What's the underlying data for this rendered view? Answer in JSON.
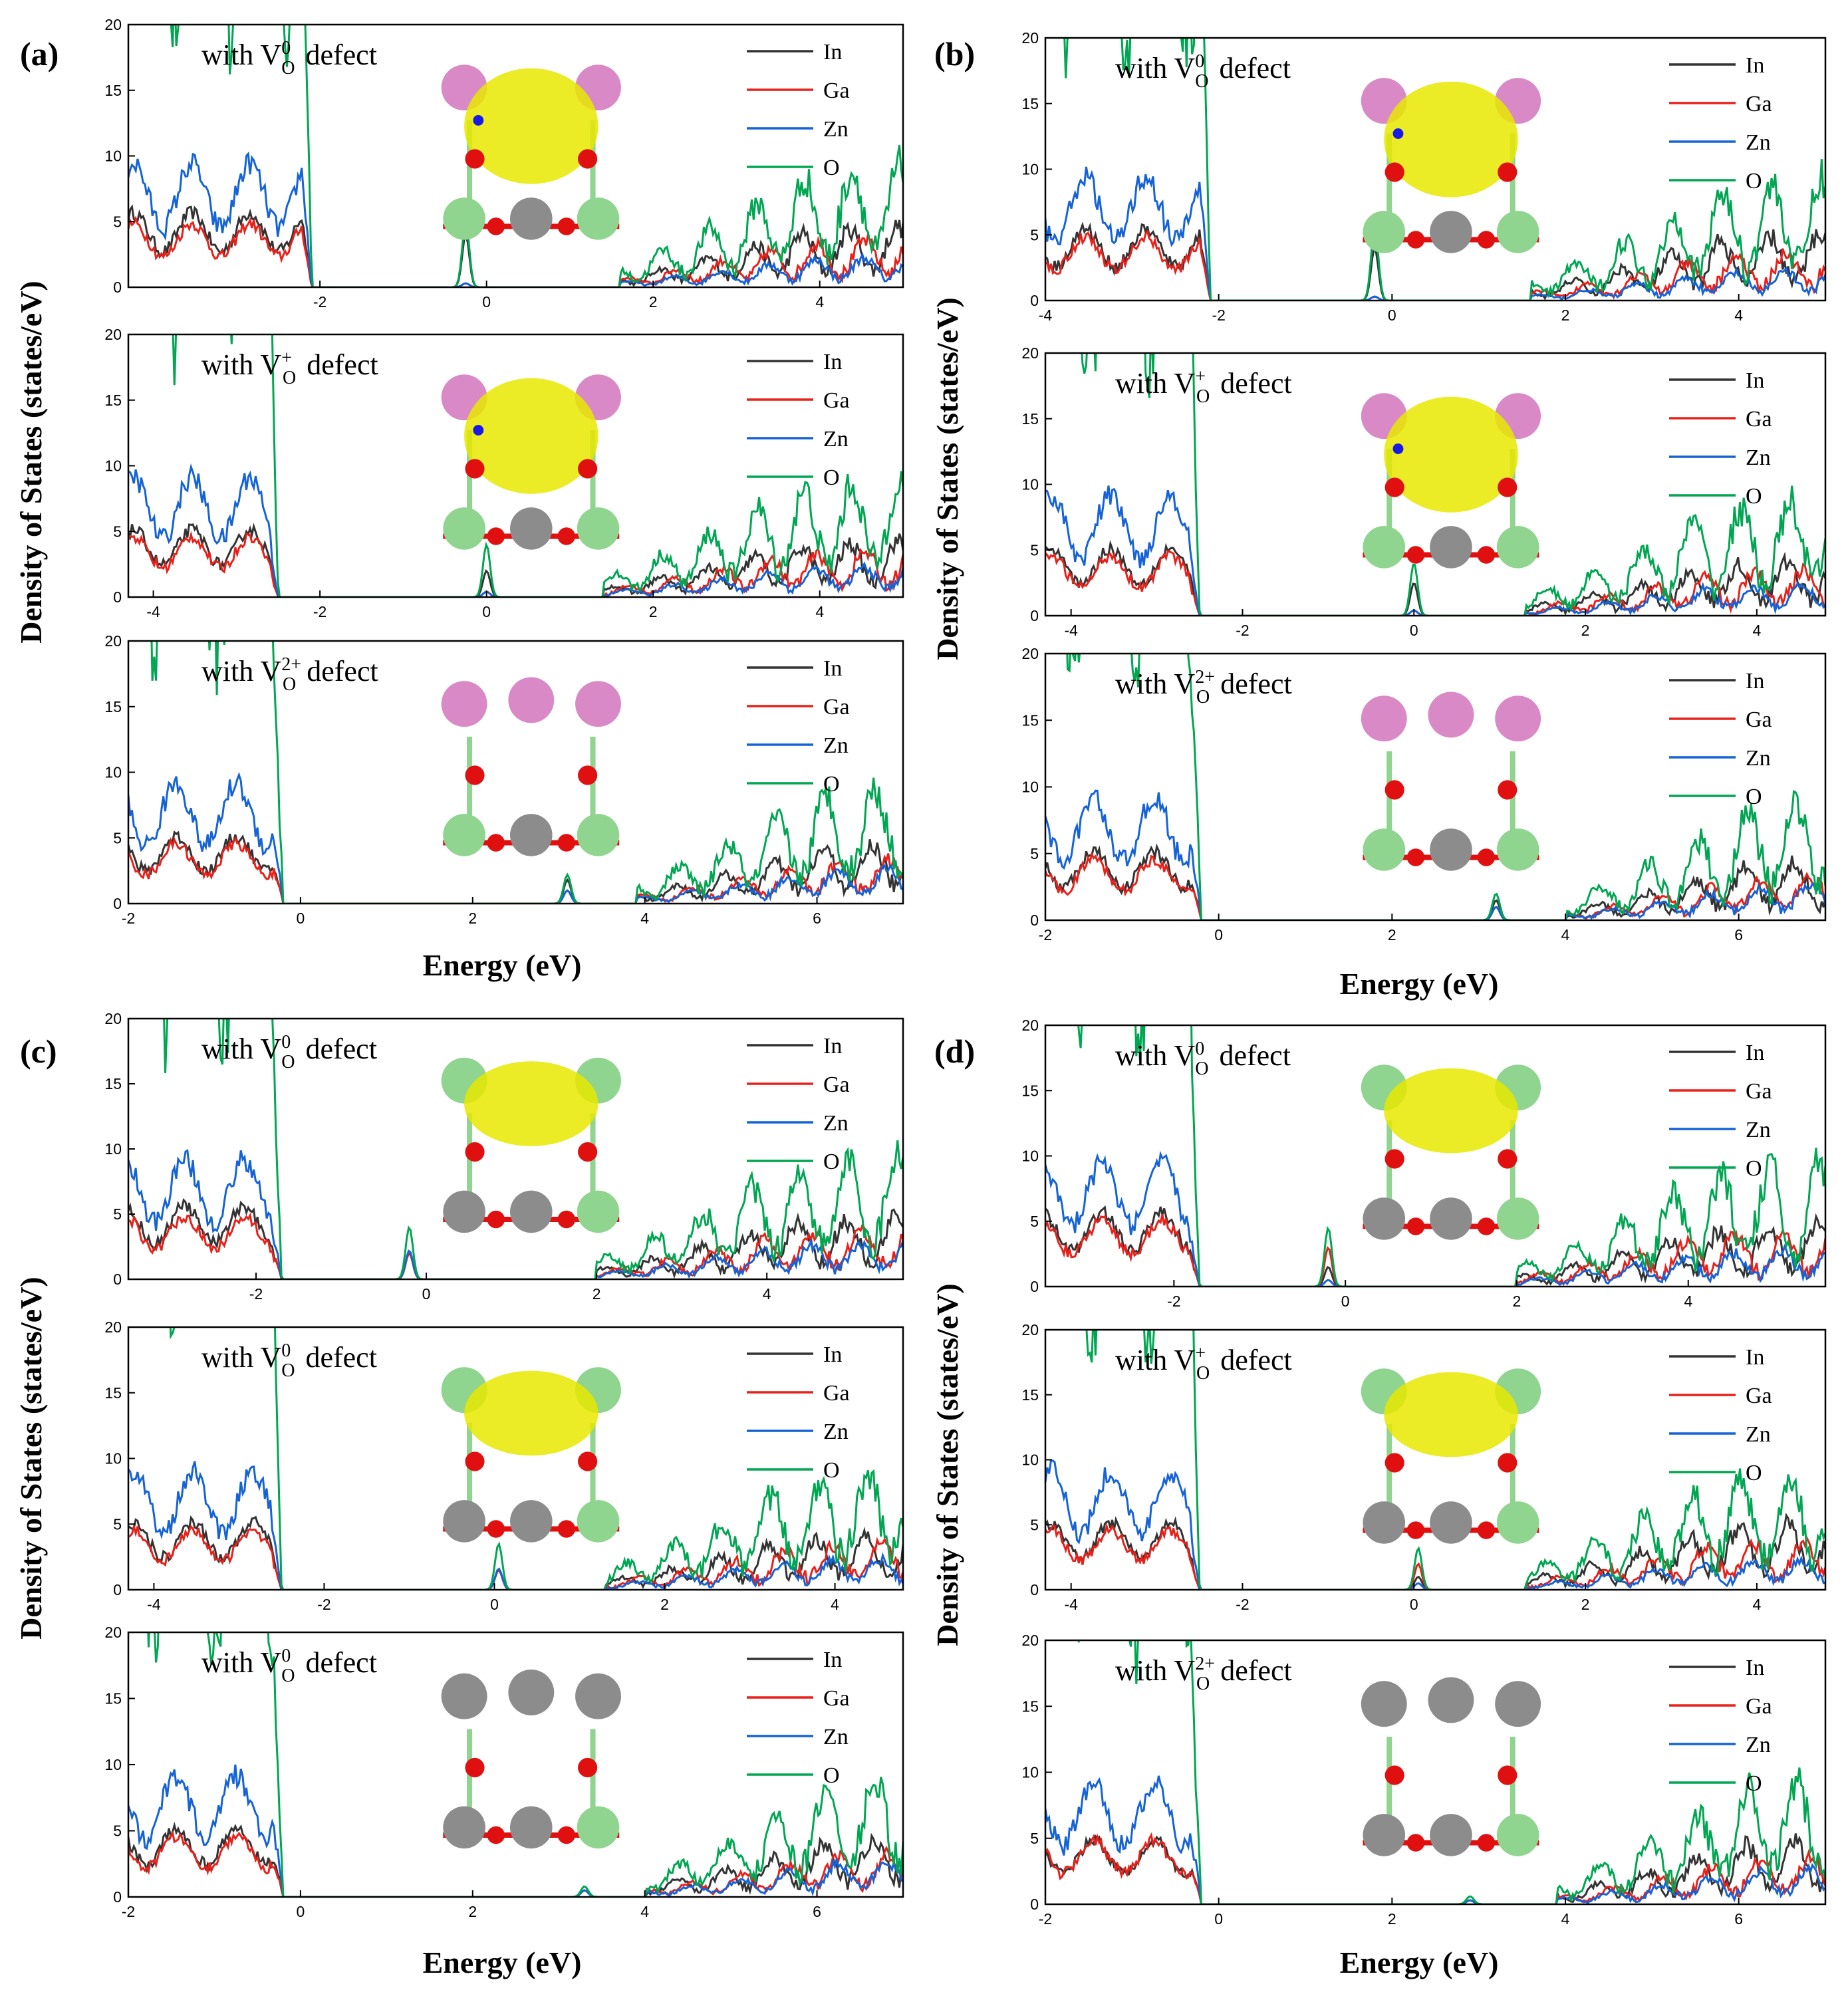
{
  "chart_data": [
    {
      "panel": "(a)",
      "type": "line",
      "xlabel": "Energy (eV)",
      "ylabel": "Density of States (states/eV)",
      "series_names": [
        "In",
        "Ga",
        "Zn",
        "O"
      ],
      "colors": {
        "In": "#333333",
        "Ga": "#e8211a",
        "Zn": "#1563d6",
        "O": "#00a651"
      },
      "subplots": [
        {
          "label_prefix": "with V",
          "sub": "O",
          "sup": "0",
          "label_suffix": "defect",
          "xlim": [
            -4.3,
            5.0
          ],
          "ylim": [
            0,
            20
          ],
          "xticks": [
            -2,
            0,
            2,
            4
          ],
          "yticks": [
            0,
            5,
            10,
            15,
            20
          ],
          "vbm": -2.1,
          "cbm": 1.6,
          "gap_peak": -0.25,
          "gap_peak_heights": {
            "In": 4,
            "Ga": 0.3,
            "Zn": 0.3,
            "O": 5
          },
          "vb_level": {
            "In": 4.2,
            "Ga": 3.6,
            "Zn": 7.0,
            "O": 30
          },
          "cb_level": {
            "In": 2.0,
            "Ga": 1.6,
            "Zn": 1.0,
            "O": 4.0
          }
        },
        {
          "label_prefix": "with V",
          "sub": "O",
          "sup": "+",
          "label_suffix": "defect",
          "xlim": [
            -4.3,
            5.0
          ],
          "ylim": [
            0,
            20
          ],
          "xticks": [
            -4,
            -2,
            0,
            2,
            4
          ],
          "yticks": [
            0,
            5,
            10,
            15,
            20
          ],
          "vbm": -2.5,
          "cbm": 1.4,
          "gap_peak": 0.0,
          "gap_peak_heights": {
            "In": 2,
            "Ga": 0.4,
            "Zn": 0.4,
            "O": 4
          },
          "vb_level": {
            "In": 3.8,
            "Ga": 3.4,
            "Zn": 6.8,
            "O": 30
          },
          "cb_level": {
            "In": 1.8,
            "Ga": 1.5,
            "Zn": 1.0,
            "O": 3.8
          }
        },
        {
          "label_prefix": "with V",
          "sub": "O",
          "sup": "2+",
          "label_suffix": "defect",
          "xlim": [
            -2.0,
            7.0
          ],
          "ylim": [
            0,
            20
          ],
          "xticks": [
            -2,
            0,
            2,
            4,
            6
          ],
          "yticks": [
            0,
            5,
            10,
            15,
            20
          ],
          "vbm": -0.2,
          "cbm": 3.9,
          "gap_peak": 3.1,
          "gap_peak_heights": {
            "In": 1.8,
            "Ga": 1.0,
            "Zn": 1.0,
            "O": 2.2
          },
          "vb_level": {
            "In": 3.8,
            "Ga": 3.4,
            "Zn": 6.8,
            "O": 30
          },
          "cb_level": {
            "In": 2.0,
            "Ga": 1.5,
            "Zn": 1.2,
            "O": 4.0
          }
        }
      ]
    },
    {
      "panel": "(b)",
      "type": "line",
      "xlabel": "Energy (eV)",
      "ylabel": "Density of States (states/eV)",
      "series_names": [
        "In",
        "Ga",
        "Zn",
        "O"
      ],
      "colors": {
        "In": "#333333",
        "Ga": "#e8211a",
        "Zn": "#1563d6",
        "O": "#00a651"
      },
      "subplots": [
        {
          "label_prefix": "with V",
          "sub": "O",
          "sup": "0",
          "label_suffix": "defect",
          "xlim": [
            -4.0,
            5.0
          ],
          "ylim": [
            0,
            20
          ],
          "xticks": [
            -4,
            -2,
            0,
            2,
            4
          ],
          "yticks": [
            0,
            5,
            10,
            15,
            20
          ],
          "vbm": -2.1,
          "cbm": 1.6,
          "gap_peak": -0.2,
          "gap_peak_heights": {
            "In": 4,
            "Ga": 0.3,
            "Zn": 0.3,
            "O": 5.5
          },
          "vb_level": {
            "In": 4.0,
            "Ga": 3.6,
            "Zn": 7.0,
            "O": 30
          },
          "cb_level": {
            "In": 2.2,
            "Ga": 1.6,
            "Zn": 1.0,
            "O": 4.0
          }
        },
        {
          "label_prefix": "with V",
          "sub": "O",
          "sup": "+",
          "label_suffix": "defect",
          "xlim": [
            -4.3,
            4.8
          ],
          "ylim": [
            0,
            20
          ],
          "xticks": [
            -4,
            -2,
            0,
            2,
            4
          ],
          "yticks": [
            0,
            5,
            10,
            15,
            20
          ],
          "vbm": -2.5,
          "cbm": 1.3,
          "gap_peak": 0.0,
          "gap_peak_heights": {
            "In": 2.5,
            "Ga": 0.4,
            "Zn": 0.4,
            "O": 4
          },
          "vb_level": {
            "In": 3.8,
            "Ga": 3.4,
            "Zn": 6.8,
            "O": 30
          },
          "cb_level": {
            "In": 1.8,
            "Ga": 1.5,
            "Zn": 1.0,
            "O": 3.8
          }
        },
        {
          "label_prefix": "with V",
          "sub": "O",
          "sup": "2+",
          "label_suffix": "defect",
          "xlim": [
            -2.0,
            7.0
          ],
          "ylim": [
            0,
            20
          ],
          "xticks": [
            -2,
            0,
            2,
            4,
            6
          ],
          "yticks": [
            0,
            5,
            10,
            15,
            20
          ],
          "vbm": -0.2,
          "cbm": 4.0,
          "gap_peak": 3.2,
          "gap_peak_heights": {
            "In": 1.5,
            "Ga": 1.0,
            "Zn": 1.0,
            "O": 2.0
          },
          "vb_level": {
            "In": 3.8,
            "Ga": 3.4,
            "Zn": 6.8,
            "O": 30
          },
          "cb_level": {
            "In": 2.0,
            "Ga": 1.5,
            "Zn": 1.2,
            "O": 4.0
          }
        }
      ]
    },
    {
      "panel": "(c)",
      "type": "line",
      "xlabel": "Energy (eV)",
      "ylabel": "Density of States (states/eV)",
      "series_names": [
        "In",
        "Ga",
        "Zn",
        "O"
      ],
      "colors": {
        "In": "#333333",
        "Ga": "#e8211a",
        "Zn": "#1563d6",
        "O": "#00a651"
      },
      "subplots": [
        {
          "label_prefix": "with V",
          "sub": "O",
          "sup": "0",
          "label_suffix": "defect",
          "xlim": [
            -3.5,
            5.6
          ],
          "ylim": [
            0,
            20
          ],
          "xticks": [
            -2,
            0,
            2,
            4
          ],
          "yticks": [
            0,
            5,
            10,
            15,
            20
          ],
          "vbm": -1.7,
          "cbm": 2.0,
          "gap_peak": -0.2,
          "gap_peak_heights": {
            "In": 2,
            "Ga": 2,
            "Zn": 2.2,
            "O": 4
          },
          "vb_level": {
            "In": 4.2,
            "Ga": 3.6,
            "Zn": 6.8,
            "O": 30
          },
          "cb_level": {
            "In": 2.0,
            "Ga": 1.6,
            "Zn": 1.2,
            "O": 4.0
          }
        },
        {
          "label_prefix": "with V",
          "sub": "O",
          "sup": "0",
          "label_suffix": "defect",
          "xlim": [
            -4.3,
            4.8
          ],
          "ylim": [
            0,
            20
          ],
          "xticks": [
            -4,
            -2,
            0,
            2,
            4
          ],
          "yticks": [
            0,
            5,
            10,
            15,
            20
          ],
          "vbm": -2.5,
          "cbm": 1.3,
          "gap_peak": 0.05,
          "gap_peak_heights": {
            "In": 1.5,
            "Ga": 1.5,
            "Zn": 1.6,
            "O": 3.5
          },
          "vb_level": {
            "In": 3.8,
            "Ga": 3.4,
            "Zn": 6.8,
            "O": 30
          },
          "cb_level": {
            "In": 1.8,
            "Ga": 1.5,
            "Zn": 1.0,
            "O": 3.8
          }
        },
        {
          "label_prefix": "with V",
          "sub": "O",
          "sup": "0",
          "label_suffix": "defect",
          "xlim": [
            -2.0,
            7.0
          ],
          "ylim": [
            0,
            20
          ],
          "xticks": [
            -2,
            0,
            2,
            4,
            6
          ],
          "yticks": [
            0,
            5,
            10,
            15,
            20
          ],
          "vbm": -0.2,
          "cbm": 4.0,
          "gap_peak": 3.3,
          "gap_peak_heights": {
            "In": 0.5,
            "Ga": 0.5,
            "Zn": 0.5,
            "O": 0.8
          },
          "vb_level": {
            "In": 3.8,
            "Ga": 3.4,
            "Zn": 6.8,
            "O": 30
          },
          "cb_level": {
            "In": 2.0,
            "Ga": 1.5,
            "Zn": 1.2,
            "O": 4.0
          }
        }
      ]
    },
    {
      "panel": "(d)",
      "type": "line",
      "xlabel": "Energy (eV)",
      "ylabel": "Density of States (states/eV)",
      "series_names": [
        "In",
        "Ga",
        "Zn",
        "O"
      ],
      "colors": {
        "In": "#333333",
        "Ga": "#e8211a",
        "Zn": "#1563d6",
        "O": "#00a651"
      },
      "subplots": [
        {
          "label_prefix": "with V",
          "sub": "O",
          "sup": "0",
          "label_suffix": "defect",
          "xlim": [
            -3.5,
            5.6
          ],
          "ylim": [
            0,
            20
          ],
          "xticks": [
            -2,
            0,
            2,
            4
          ],
          "yticks": [
            0,
            5,
            10,
            15,
            20
          ],
          "vbm": -1.7,
          "cbm": 2.0,
          "gap_peak": -0.2,
          "gap_peak_heights": {
            "In": 1.5,
            "Ga": 3,
            "Zn": 0.5,
            "O": 4.5
          },
          "vb_level": {
            "In": 4.2,
            "Ga": 3.8,
            "Zn": 7.0,
            "O": 30
          },
          "cb_level": {
            "In": 2.0,
            "Ga": 1.8,
            "Zn": 1.2,
            "O": 4.0
          }
        },
        {
          "label_prefix": "with V",
          "sub": "O",
          "sup": "+",
          "label_suffix": "defect",
          "xlim": [
            -4.3,
            4.8
          ],
          "ylim": [
            0,
            20
          ],
          "xticks": [
            -4,
            -2,
            0,
            2,
            4
          ],
          "yticks": [
            0,
            5,
            10,
            15,
            20
          ],
          "vbm": -2.5,
          "cbm": 1.3,
          "gap_peak": 0.05,
          "gap_peak_heights": {
            "In": 1.0,
            "Ga": 2.0,
            "Zn": 0.5,
            "O": 3.2
          },
          "vb_level": {
            "In": 3.8,
            "Ga": 3.4,
            "Zn": 6.8,
            "O": 30
          },
          "cb_level": {
            "In": 2.2,
            "Ga": 1.6,
            "Zn": 1.0,
            "O": 4.0
          }
        },
        {
          "label_prefix": "with V",
          "sub": "O",
          "sup": "2+",
          "label_suffix": "defect",
          "xlim": [
            -2.0,
            7.0
          ],
          "ylim": [
            0,
            20
          ],
          "xticks": [
            -2,
            0,
            2,
            4,
            6
          ],
          "yticks": [
            0,
            5,
            10,
            15,
            20
          ],
          "vbm": -0.2,
          "cbm": 3.9,
          "gap_peak": 2.9,
          "gap_peak_heights": {
            "In": 0.3,
            "Ga": 0.3,
            "Zn": 0.3,
            "O": 0.6
          },
          "vb_level": {
            "In": 3.6,
            "Ga": 3.6,
            "Zn": 6.8,
            "O": 30
          },
          "cb_level": {
            "In": 2.2,
            "Ga": 1.6,
            "Zn": 1.2,
            "O": 4.2
          }
        }
      ]
    }
  ],
  "structure_colors": {
    "In": "#d98ac6",
    "Ga": "#8fd48f",
    "Zn": "#8c8c8c",
    "O": "#e01010",
    "charge": "#e8e800",
    "N": "#1a1ae6"
  }
}
